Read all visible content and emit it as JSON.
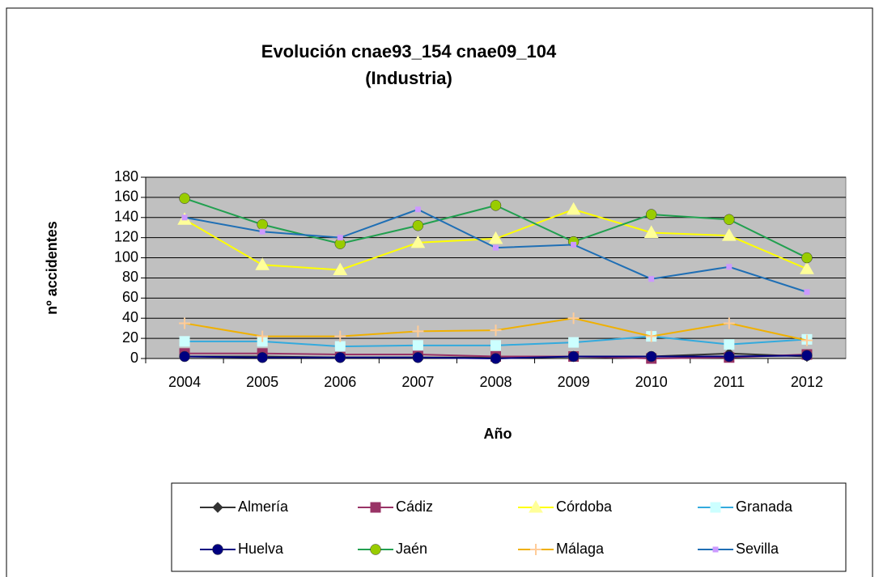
{
  "chart_data": {
    "type": "line",
    "title": "Evolución cnae93_154 cnae09_104",
    "subtitle": "(Industria)",
    "x_label": "Año",
    "y_label": "nº accidentes",
    "categories": [
      "2004",
      "2005",
      "2006",
      "2007",
      "2008",
      "2009",
      "2010",
      "2011",
      "2012"
    ],
    "ylim": [
      0,
      180
    ],
    "yticks": [
      0,
      20,
      40,
      60,
      80,
      100,
      120,
      140,
      160,
      180
    ],
    "grid": true,
    "legend": "bottom",
    "series": [
      {
        "name": "Almería",
        "color": "#333333",
        "marker": "diamond",
        "marker_color": "#333333",
        "values": [
          2,
          2,
          1,
          1,
          1,
          2,
          2,
          5,
          2
        ]
      },
      {
        "name": "Cádiz",
        "color": "#993366",
        "marker": "square",
        "marker_color": "#993366",
        "values": [
          5,
          5,
          4,
          4,
          2,
          2,
          0,
          1,
          4
        ]
      },
      {
        "name": "Córdoba",
        "color": "#ffff00",
        "marker": "triangle",
        "marker_color": "#ffff99",
        "values": [
          138,
          93,
          88,
          115,
          119,
          148,
          125,
          122,
          89
        ]
      },
      {
        "name": "Granada",
        "color": "#33aadd",
        "marker": "square",
        "marker_color": "#ccffff",
        "values": [
          17,
          17,
          12,
          13,
          13,
          16,
          22,
          14,
          19
        ]
      },
      {
        "name": "Huelva",
        "color": "#000080",
        "marker": "circle",
        "marker_color": "#000080",
        "values": [
          2,
          1,
          1,
          1,
          0,
          2,
          2,
          2,
          3
        ]
      },
      {
        "name": "Jaén",
        "color": "#22a050",
        "marker": "circle",
        "marker_color": "#99cc00",
        "values": [
          159,
          133,
          114,
          132,
          152,
          116,
          143,
          138,
          100
        ]
      },
      {
        "name": "Málaga",
        "color": "#f0b000",
        "marker": "plus",
        "marker_color": "#ffcc99",
        "values": [
          35,
          22,
          22,
          27,
          28,
          40,
          22,
          35,
          18
        ]
      },
      {
        "name": "Sevilla",
        "color": "#1f6fb5",
        "marker": "small-square",
        "marker_color": "#cc99ff",
        "values": [
          140,
          126,
          120,
          148,
          110,
          113,
          79,
          91,
          66
        ]
      }
    ]
  }
}
